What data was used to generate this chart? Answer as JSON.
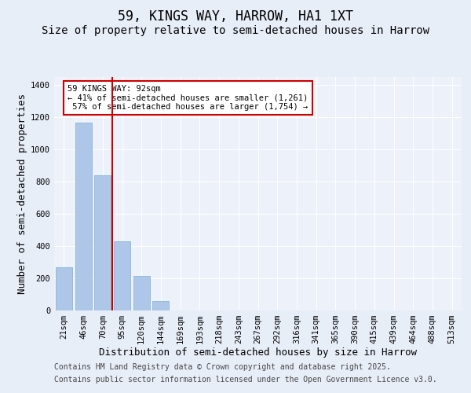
{
  "title": "59, KINGS WAY, HARROW, HA1 1XT",
  "subtitle": "Size of property relative to semi-detached houses in Harrow",
  "xlabel": "Distribution of semi-detached houses by size in Harrow",
  "ylabel": "Number of semi-detached properties",
  "categories": [
    "21sqm",
    "46sqm",
    "70sqm",
    "95sqm",
    "120sqm",
    "144sqm",
    "169sqm",
    "193sqm",
    "218sqm",
    "243sqm",
    "267sqm",
    "292sqm",
    "316sqm",
    "341sqm",
    "365sqm",
    "390sqm",
    "415sqm",
    "439sqm",
    "464sqm",
    "488sqm",
    "513sqm"
  ],
  "values": [
    270,
    1165,
    840,
    430,
    215,
    60,
    0,
    0,
    0,
    0,
    0,
    0,
    0,
    0,
    0,
    0,
    0,
    0,
    0,
    0,
    0
  ],
  "bar_color": "#aec6e8",
  "bar_edge_color": "#7aafd4",
  "bar_width": 0.85,
  "pct_smaller": 41,
  "pct_smaller_count": 1261,
  "pct_larger": 57,
  "pct_larger_count": 1754,
  "property_size_label": "59 KINGS WAY: 92sqm",
  "vline_bar_index": 2,
  "vline_color": "#cc0000",
  "annotation_box_color": "#cc0000",
  "ylim": [
    0,
    1450
  ],
  "yticks": [
    0,
    200,
    400,
    600,
    800,
    1000,
    1200,
    1400
  ],
  "bg_color": "#e8eef8",
  "plot_bg_color": "#edf2fa",
  "grid_color": "#ffffff",
  "footer_line1": "Contains HM Land Registry data © Crown copyright and database right 2025.",
  "footer_line2": "Contains public sector information licensed under the Open Government Licence v3.0.",
  "title_fontsize": 12,
  "subtitle_fontsize": 10,
  "axis_label_fontsize": 9,
  "tick_fontsize": 7.5,
  "annotation_fontsize": 7.5,
  "footer_fontsize": 7
}
